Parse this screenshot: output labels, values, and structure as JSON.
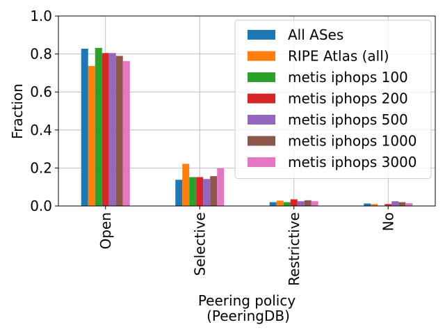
{
  "chart_data": {
    "type": "bar",
    "title": "",
    "xlabel_lines": [
      "Peering policy",
      "(PeeringDB)"
    ],
    "ylabel": "Fraction",
    "ylim": [
      0,
      1.0
    ],
    "yticks": [
      "0.0",
      "0.2",
      "0.4",
      "0.6",
      "0.8",
      "1.0"
    ],
    "grid": true,
    "legend_position": "top-right",
    "categories": [
      "Open",
      "Selective",
      "Restrictive",
      "No"
    ],
    "series": [
      {
        "name": "All ASes",
        "color": "#1f77b4",
        "values": [
          0.828,
          0.138,
          0.02,
          0.013
        ]
      },
      {
        "name": "RIPE Atlas (all)",
        "color": "#ff7f0e",
        "values": [
          0.737,
          0.222,
          0.028,
          0.01
        ]
      },
      {
        "name": "metis iphops 100",
        "color": "#2ca02c",
        "values": [
          0.832,
          0.152,
          0.02,
          0.0
        ]
      },
      {
        "name": "metis iphops 200",
        "color": "#d62728",
        "values": [
          0.805,
          0.152,
          0.035,
          0.01
        ]
      },
      {
        "name": "metis iphops 500",
        "color": "#9467bd",
        "values": [
          0.805,
          0.142,
          0.025,
          0.025
        ]
      },
      {
        "name": "metis iphops 1000",
        "color": "#8c564b",
        "values": [
          0.79,
          0.157,
          0.03,
          0.02
        ]
      },
      {
        "name": "metis iphops 3000",
        "color": "#e377c2",
        "values": [
          0.763,
          0.198,
          0.025,
          0.015
        ]
      }
    ]
  }
}
